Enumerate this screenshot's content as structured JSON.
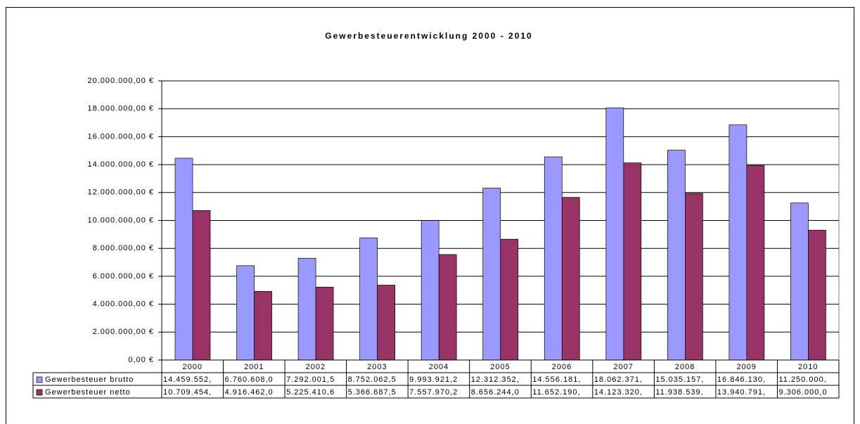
{
  "chart_data": {
    "type": "bar",
    "title": "Gewerbesteuerentwicklung 2000 - 2010",
    "categories": [
      "2000",
      "2001",
      "2002",
      "2003",
      "2004",
      "2005",
      "2006",
      "2007",
      "2008",
      "2009",
      "2010"
    ],
    "series": [
      {
        "name": "Gewerbesteuer brutto",
        "color": "#9999ff",
        "values": [
          14459552,
          6760608.0,
          7292001.5,
          8752062.5,
          9993921.2,
          12312352,
          14556181,
          18062371,
          15035157,
          16846130,
          11250000
        ],
        "value_labels": [
          "14.459.552,",
          "6.760.608,0",
          "7.292.001,5",
          "8.752.062,5",
          "9.993.921,2",
          "12.312.352,",
          "14.556.181,",
          "18.062.371,",
          "15.035.157,",
          "16.846.130,",
          "11.250.000,"
        ]
      },
      {
        "name": "Gewerbesteuer netto",
        "color": "#993366",
        "values": [
          10709454,
          4916462.0,
          5225410.6,
          5366687.5,
          7557970.2,
          8656244.0,
          11652190,
          14123320,
          11938539,
          13940791,
          9306000.0
        ],
        "value_labels": [
          "10.709.454,",
          "4.916.462,0",
          "5.225.410,6",
          "5.366.687,5",
          "7.557.970,2",
          "8.656.244,0",
          "11.652.190,",
          "14.123.320,",
          "11.938.539,",
          "13.940.791,",
          "9.306.000,0"
        ]
      }
    ],
    "ylim": [
      0,
      20000000
    ],
    "yticks": [
      {
        "value": 0,
        "label": "0,00 €"
      },
      {
        "value": 2000000,
        "label": "2.000.000,00 €"
      },
      {
        "value": 4000000,
        "label": "4.000.000,00 €"
      },
      {
        "value": 6000000,
        "label": "6.000.000,00 €"
      },
      {
        "value": 8000000,
        "label": "8.000.000,00 €"
      },
      {
        "value": 10000000,
        "label": "10.000.000,00 €"
      },
      {
        "value": 12000000,
        "label": "12.000.000,00 €"
      },
      {
        "value": 14000000,
        "label": "14.000.000,00 €"
      },
      {
        "value": 16000000,
        "label": "16.000.000,00 €"
      },
      {
        "value": 18000000,
        "label": "18.000.000,00 €"
      },
      {
        "value": 20000000,
        "label": "20.000.000,00 €"
      }
    ],
    "grid": true
  }
}
